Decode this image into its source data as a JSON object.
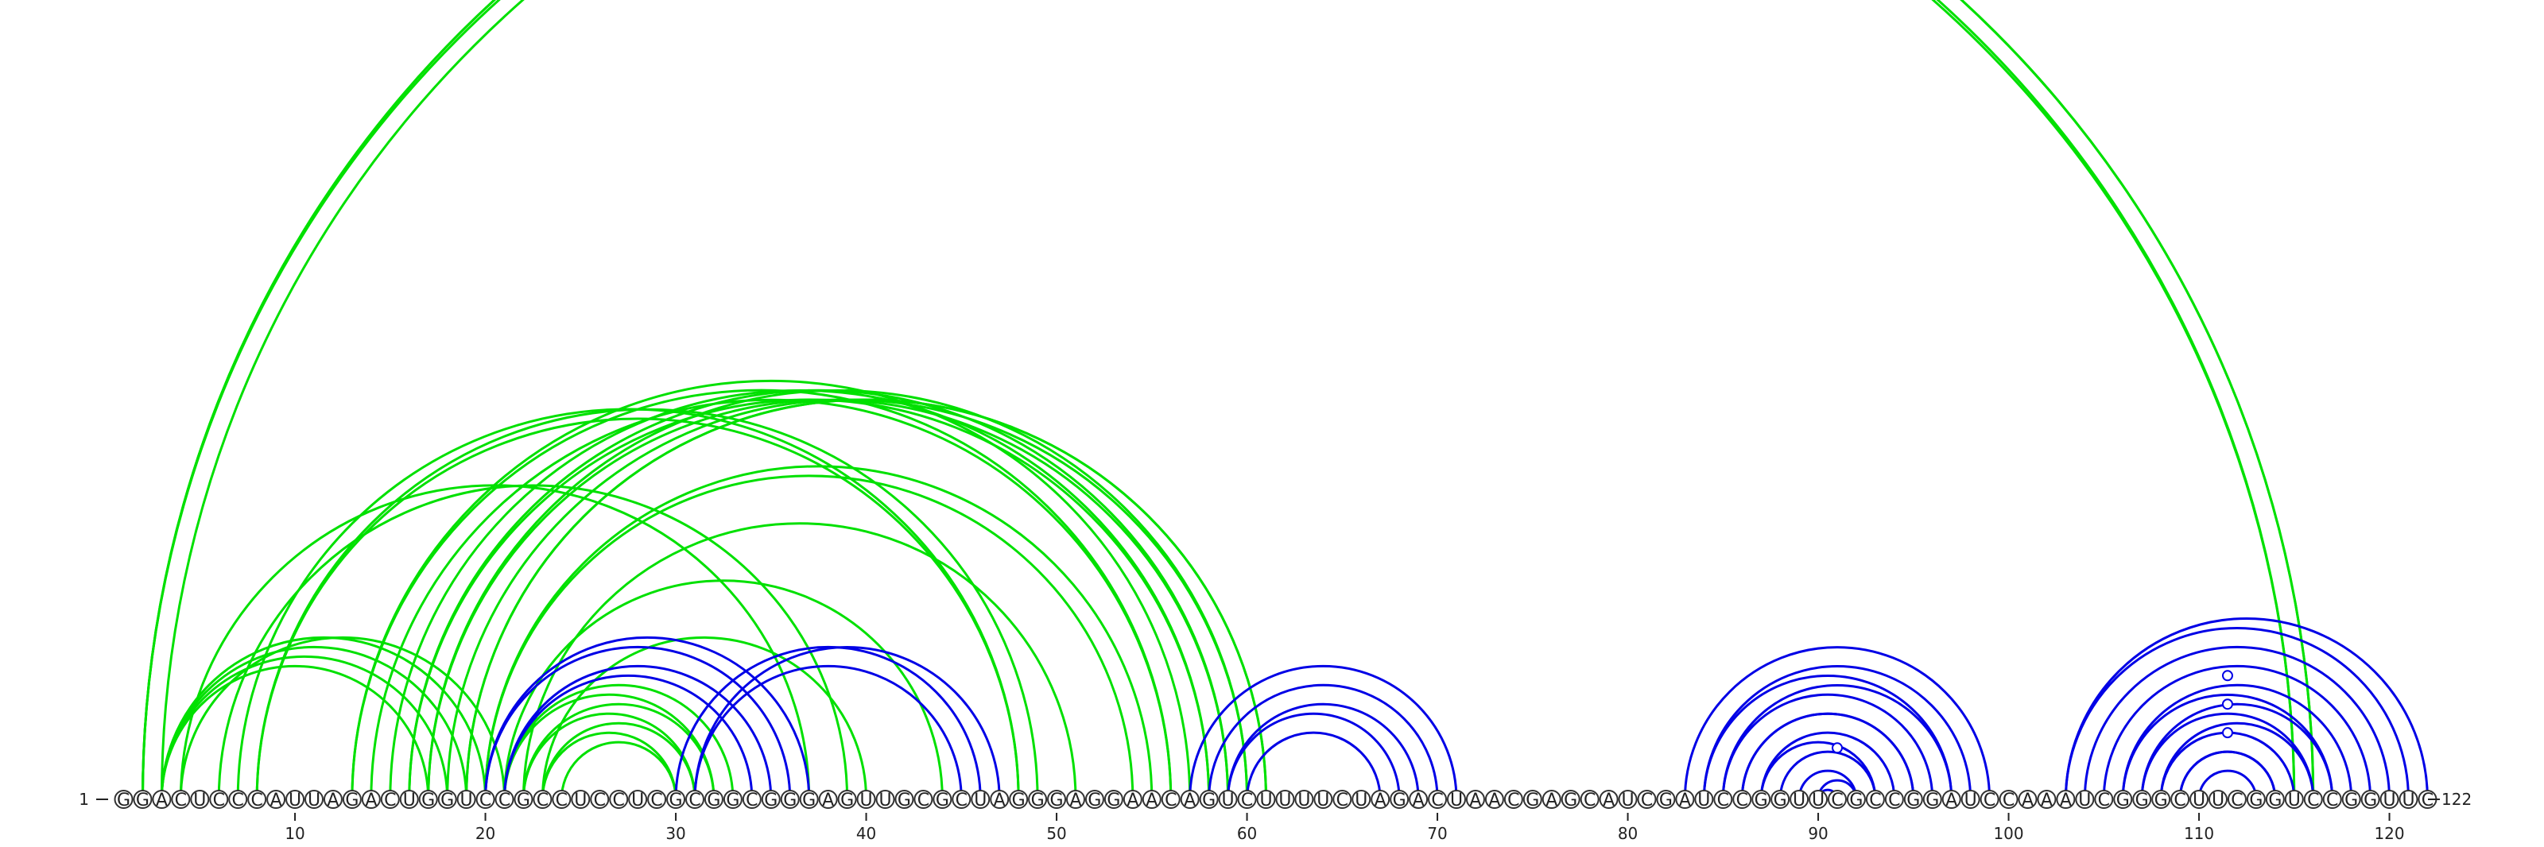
{
  "sequence": "GGACUCCCAUUAGACUGGUCCGCCUCCUCGCGGCGGGAGUUGCGCUAGGGAGGAACAGUCUUUUCUAGACUAACGAGCAUCGAUCCGGUUCGCCGGAUCCAAAUCGGGCUUCGGUCCGGUUC",
  "start_label": "1",
  "end_label": "122",
  "position_ticks": [
    "10",
    "20",
    "30",
    "40",
    "50",
    "60",
    "70",
    "80",
    "90",
    "100",
    "110",
    "120"
  ],
  "colors": {
    "above": "#00e000",
    "below": "#0000e6",
    "nucleotide_stroke": "#333333"
  },
  "chart_data": {
    "type": "arc",
    "length": 122,
    "green_pairs": [
      [
        2,
        116
      ],
      [
        2,
        116
      ],
      [
        2,
        115
      ],
      [
        3,
        115
      ],
      [
        3,
        20
      ],
      [
        3,
        19
      ],
      [
        3,
        18
      ],
      [
        3,
        17
      ],
      [
        4,
        21
      ],
      [
        4,
        37
      ],
      [
        6,
        39
      ],
      [
        7,
        48
      ],
      [
        8,
        48
      ],
      [
        8,
        49
      ],
      [
        13,
        57
      ],
      [
        13,
        56
      ],
      [
        14,
        56
      ],
      [
        15,
        58
      ],
      [
        16,
        59
      ],
      [
        16,
        58
      ],
      [
        17,
        59
      ],
      [
        17,
        60
      ],
      [
        18,
        60
      ],
      [
        19,
        61
      ],
      [
        19,
        61
      ],
      [
        20,
        55
      ],
      [
        20,
        54
      ],
      [
        21,
        44
      ],
      [
        22,
        51
      ],
      [
        23,
        40
      ],
      [
        21,
        33
      ],
      [
        21,
        32
      ],
      [
        22,
        32
      ],
      [
        22,
        31
      ],
      [
        23,
        31
      ],
      [
        23,
        30
      ],
      [
        24,
        30
      ]
    ],
    "blue_pairs": [
      [
        20,
        37
      ],
      [
        20,
        36
      ],
      [
        21,
        35
      ],
      [
        21,
        34
      ],
      [
        31,
        47
      ],
      [
        30,
        46
      ],
      [
        31,
        45
      ],
      [
        57,
        71
      ],
      [
        58,
        70
      ],
      [
        59,
        69
      ],
      [
        59,
        68
      ],
      [
        60,
        67
      ],
      [
        83,
        99
      ],
      [
        84,
        98
      ],
      [
        84,
        97
      ],
      [
        85,
        97
      ],
      [
        85,
        96
      ],
      [
        86,
        95
      ],
      [
        86,
        95
      ],
      [
        87,
        94
      ],
      [
        87,
        93
      ],
      [
        88,
        93
      ],
      [
        89,
        92
      ],
      [
        90,
        92
      ],
      [
        90,
        91
      ],
      [
        103,
        122
      ],
      [
        103,
        121
      ],
      [
        104,
        120
      ],
      [
        105,
        119
      ],
      [
        106,
        118
      ],
      [
        106,
        117
      ],
      [
        107,
        117
      ],
      [
        107,
        116
      ],
      [
        108,
        116
      ],
      [
        108,
        115
      ],
      [
        109,
        114
      ],
      [
        109,
        114
      ],
      [
        110,
        113
      ]
    ],
    "circle_markers": [
      [
        111.5,
        3
      ],
      [
        111.5,
        4.5
      ],
      [
        111.5,
        6
      ],
      [
        91,
        2.2
      ]
    ]
  }
}
